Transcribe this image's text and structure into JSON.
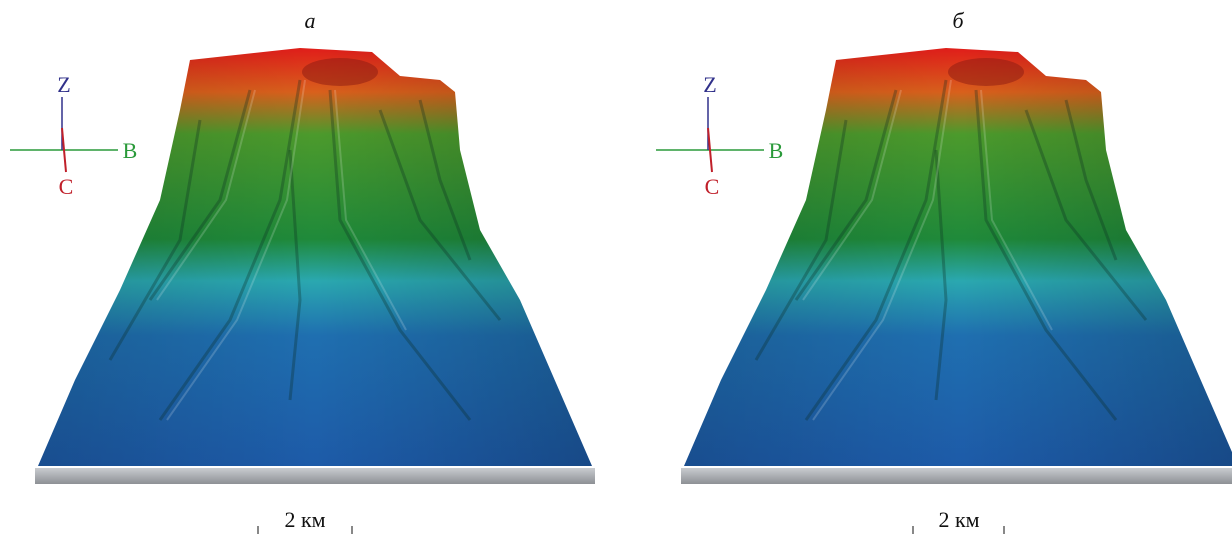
{
  "panels": [
    {
      "label": "а",
      "axes": {
        "z": "Z",
        "b": "B",
        "c": "C"
      },
      "scale": "2 км"
    },
    {
      "label": "б",
      "axes": {
        "z": "Z",
        "b": "B",
        "c": "C"
      },
      "scale": "2 км"
    }
  ]
}
